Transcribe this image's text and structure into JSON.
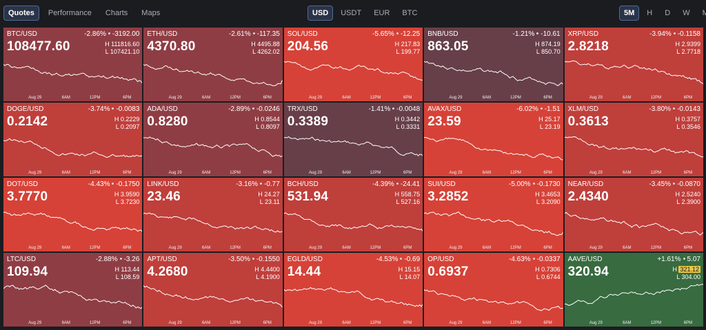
{
  "nav": {
    "views": [
      "Quotes",
      "Performance",
      "Charts",
      "Maps"
    ],
    "active_view": "Quotes",
    "currencies": [
      "USD",
      "USDT",
      "EUR",
      "BTC"
    ],
    "active_currency": "USD",
    "timeframes": [
      "5M",
      "H",
      "D",
      "W",
      "M"
    ],
    "active_timeframe": "5M"
  },
  "time_axis": [
    "Aug 29",
    "6AM",
    "12PM",
    "6PM"
  ],
  "colors": {
    "strong_down": "#d64238",
    "down": "#bf3f3b",
    "mild_down": "#8f3d44",
    "slight_down": "#673f49",
    "up": "#386b40",
    "highlight_badge": "#e8c547"
  },
  "tiles": [
    {
      "symbol": "BTC/USD",
      "pct": "-2.86%",
      "change": "-3192.00",
      "price": "108477.60",
      "high": "111816.60",
      "low": "107421.10",
      "trend": "down",
      "shade": "mild_down"
    },
    {
      "symbol": "ETH/USD",
      "pct": "-2.61%",
      "change": "-117.35",
      "price": "4370.80",
      "high": "4495.88",
      "low": "4262.02",
      "trend": "down",
      "shade": "mild_down"
    },
    {
      "symbol": "SOL/USD",
      "pct": "-5.65%",
      "change": "-12.25",
      "price": "204.56",
      "high": "217.83",
      "low": "199.77",
      "trend": "down",
      "shade": "strong_down"
    },
    {
      "symbol": "BNB/USD",
      "pct": "-1.21%",
      "change": "-10.61",
      "price": "863.05",
      "high": "874.19",
      "low": "850.70",
      "trend": "down",
      "shade": "slight_down"
    },
    {
      "symbol": "XRP/USD",
      "pct": "-3.94%",
      "change": "-0.1158",
      "price": "2.8218",
      "high": "2.9399",
      "low": "2.7718",
      "trend": "down",
      "shade": "down"
    },
    {
      "symbol": "DOGE/USD",
      "pct": "-3.74%",
      "change": "-0.0083",
      "price": "0.2142",
      "high": "0.2229",
      "low": "0.2097",
      "trend": "down",
      "shade": "down"
    },
    {
      "symbol": "ADA/USD",
      "pct": "-2.89%",
      "change": "-0.0246",
      "price": "0.8280",
      "high": "0.8544",
      "low": "0.8097",
      "trend": "down",
      "shade": "mild_down"
    },
    {
      "symbol": "TRX/USD",
      "pct": "-1.41%",
      "change": "-0.0048",
      "price": "0.3389",
      "high": "0.3442",
      "low": "0.3331",
      "trend": "down",
      "shade": "slight_down"
    },
    {
      "symbol": "AVAX/USD",
      "pct": "-6.02%",
      "change": "-1.51",
      "price": "23.59",
      "high": "25.17",
      "low": "23.19",
      "trend": "down",
      "shade": "strong_down"
    },
    {
      "symbol": "XLM/USD",
      "pct": "-3.80%",
      "change": "-0.0143",
      "price": "0.3613",
      "high": "0.3757",
      "low": "0.3546",
      "trend": "down",
      "shade": "down"
    },
    {
      "symbol": "DOT/USD",
      "pct": "-4.43%",
      "change": "-0.1750",
      "price": "3.7770",
      "high": "3.9590",
      "low": "3.7230",
      "trend": "down",
      "shade": "strong_down"
    },
    {
      "symbol": "LINK/USD",
      "pct": "-3.16%",
      "change": "-0.77",
      "price": "23.46",
      "high": "24.27",
      "low": "23.11",
      "trend": "down",
      "shade": "down"
    },
    {
      "symbol": "BCH/USD",
      "pct": "-4.39%",
      "change": "-24.41",
      "price": "531.94",
      "high": "558.75",
      "low": "527.16",
      "trend": "down",
      "shade": "down"
    },
    {
      "symbol": "SUI/USD",
      "pct": "-5.00%",
      "change": "-0.1730",
      "price": "3.2852",
      "high": "3.4653",
      "low": "3.2090",
      "trend": "down",
      "shade": "strong_down"
    },
    {
      "symbol": "NEAR/USD",
      "pct": "-3.45%",
      "change": "-0.0870",
      "price": "2.4340",
      "high": "2.5240",
      "low": "2.3900",
      "trend": "down",
      "shade": "down"
    },
    {
      "symbol": "LTC/USD",
      "pct": "-2.88%",
      "change": "-3.26",
      "price": "109.94",
      "high": "113.44",
      "low": "108.59",
      "trend": "down",
      "shade": "mild_down"
    },
    {
      "symbol": "APT/USD",
      "pct": "-3.50%",
      "change": "-0.1550",
      "price": "4.2680",
      "high": "4.4400",
      "low": "4.1900",
      "trend": "down",
      "shade": "down"
    },
    {
      "symbol": "EGLD/USD",
      "pct": "-4.53%",
      "change": "-0.69",
      "price": "14.44",
      "high": "15.15",
      "low": "14.07",
      "trend": "down",
      "shade": "strong_down"
    },
    {
      "symbol": "OP/USD",
      "pct": "-4.63%",
      "change": "-0.0337",
      "price": "0.6937",
      "high": "0.7306",
      "low": "0.6744",
      "trend": "down",
      "shade": "strong_down"
    },
    {
      "symbol": "AAVE/USD",
      "pct": "+1.61%",
      "change": "5.07",
      "price": "320.94",
      "high": "321.12",
      "low": "304.00",
      "trend": "up",
      "shade": "up",
      "high_highlighted": true
    }
  ]
}
